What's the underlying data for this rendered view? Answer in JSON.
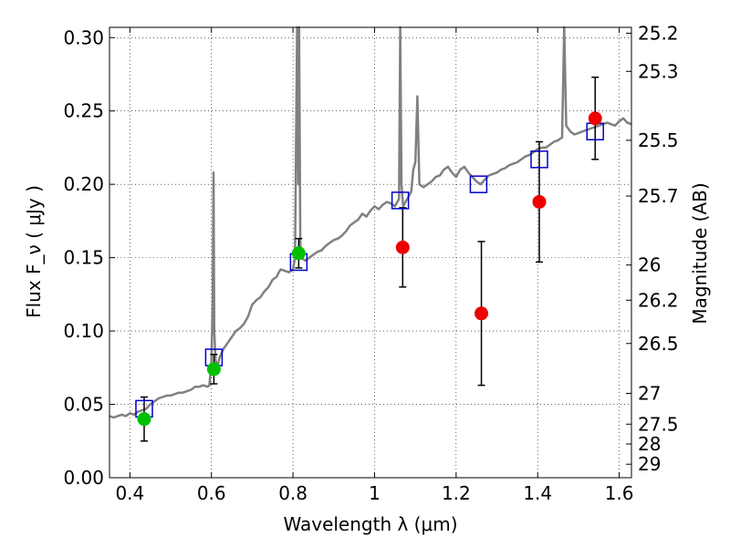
{
  "chart_data": {
    "type": "scatter",
    "xlabel": "Wavelength λ (μm)",
    "ylabel": "Flux F_ν ( μJy )",
    "ylabel_right": "Magnitude (AB)",
    "xlim": [
      0.35,
      1.63
    ],
    "ylim": [
      0.0,
      0.307
    ],
    "grid": true,
    "x_ticks": [
      {
        "value": 0.4,
        "label": "0.4"
      },
      {
        "value": 0.6,
        "label": "0.6"
      },
      {
        "value": 0.8,
        "label": "0.8"
      },
      {
        "value": 1.0,
        "label": "1"
      },
      {
        "value": 1.2,
        "label": "1.2"
      },
      {
        "value": 1.4,
        "label": "1.4"
      },
      {
        "value": 1.6,
        "label": "1.6"
      }
    ],
    "y_ticks": [
      {
        "value": 0.0,
        "label": "0.00"
      },
      {
        "value": 0.05,
        "label": "0.05"
      },
      {
        "value": 0.1,
        "label": "0.10"
      },
      {
        "value": 0.15,
        "label": "0.15"
      },
      {
        "value": 0.2,
        "label": "0.20"
      },
      {
        "value": 0.25,
        "label": "0.25"
      },
      {
        "value": 0.3,
        "label": "0.30"
      }
    ],
    "right_ticks": [
      {
        "label": "25.2",
        "flux": 0.303
      },
      {
        "label": "25.3",
        "flux": 0.277
      },
      {
        "label": "25.5",
        "flux": 0.23
      },
      {
        "label": "25.7",
        "flux": 0.192
      },
      {
        "label": "26",
        "flux": 0.145
      },
      {
        "label": "26.2",
        "flux": 0.121
      },
      {
        "label": "26.5",
        "flux": 0.0915
      },
      {
        "label": "27",
        "flux": 0.0575
      },
      {
        "label": "27.5",
        "flux": 0.0365
      },
      {
        "label": "28",
        "flux": 0.023
      },
      {
        "label": "29",
        "flux": 0.0092
      }
    ],
    "series": [
      {
        "kind": "spectrum",
        "color": "#808080",
        "points": [
          [
            0.35,
            0.042
          ],
          [
            0.36,
            0.041
          ],
          [
            0.37,
            0.042
          ],
          [
            0.38,
            0.043
          ],
          [
            0.39,
            0.042
          ],
          [
            0.4,
            0.044
          ],
          [
            0.41,
            0.043
          ],
          [
            0.42,
            0.045
          ],
          [
            0.43,
            0.046
          ],
          [
            0.44,
            0.047
          ],
          [
            0.45,
            0.05
          ],
          [
            0.46,
            0.052
          ],
          [
            0.47,
            0.054
          ],
          [
            0.48,
            0.055
          ],
          [
            0.49,
            0.056
          ],
          [
            0.5,
            0.056
          ],
          [
            0.51,
            0.057
          ],
          [
            0.52,
            0.058
          ],
          [
            0.53,
            0.058
          ],
          [
            0.54,
            0.059
          ],
          [
            0.55,
            0.06
          ],
          [
            0.56,
            0.062
          ],
          [
            0.57,
            0.062
          ],
          [
            0.58,
            0.063
          ],
          [
            0.59,
            0.062
          ],
          [
            0.595,
            0.063
          ],
          [
            0.6,
            0.08
          ],
          [
            0.603,
            0.12
          ],
          [
            0.605,
            0.208
          ],
          [
            0.607,
            0.1
          ],
          [
            0.61,
            0.08
          ],
          [
            0.615,
            0.076
          ],
          [
            0.62,
            0.082
          ],
          [
            0.63,
            0.088
          ],
          [
            0.64,
            0.092
          ],
          [
            0.65,
            0.096
          ],
          [
            0.66,
            0.1
          ],
          [
            0.67,
            0.102
          ],
          [
            0.68,
            0.105
          ],
          [
            0.69,
            0.11
          ],
          [
            0.7,
            0.118
          ],
          [
            0.71,
            0.121
          ],
          [
            0.72,
            0.123
          ],
          [
            0.73,
            0.127
          ],
          [
            0.74,
            0.13
          ],
          [
            0.75,
            0.135
          ],
          [
            0.76,
            0.137
          ],
          [
            0.765,
            0.14
          ],
          [
            0.77,
            0.142
          ],
          [
            0.78,
            0.141
          ],
          [
            0.79,
            0.14
          ],
          [
            0.8,
            0.142
          ],
          [
            0.805,
            0.15
          ],
          [
            0.81,
            0.307
          ],
          [
            0.813,
            0.2
          ],
          [
            0.815,
            0.307
          ],
          [
            0.818,
            0.16
          ],
          [
            0.82,
            0.15
          ],
          [
            0.83,
            0.148
          ],
          [
            0.84,
            0.15
          ],
          [
            0.85,
            0.152
          ],
          [
            0.86,
            0.154
          ],
          [
            0.87,
            0.155
          ],
          [
            0.88,
            0.158
          ],
          [
            0.89,
            0.16
          ],
          [
            0.9,
            0.162
          ],
          [
            0.91,
            0.163
          ],
          [
            0.92,
            0.165
          ],
          [
            0.93,
            0.168
          ],
          [
            0.94,
            0.172
          ],
          [
            0.95,
            0.174
          ],
          [
            0.96,
            0.176
          ],
          [
            0.97,
            0.18
          ],
          [
            0.98,
            0.178
          ],
          [
            0.99,
            0.182
          ],
          [
            1.0,
            0.185
          ],
          [
            1.01,
            0.183
          ],
          [
            1.02,
            0.186
          ],
          [
            1.03,
            0.188
          ],
          [
            1.04,
            0.187
          ],
          [
            1.05,
            0.185
          ],
          [
            1.06,
            0.19
          ],
          [
            1.063,
            0.307
          ],
          [
            1.066,
            0.2
          ],
          [
            1.07,
            0.185
          ],
          [
            1.08,
            0.19
          ],
          [
            1.09,
            0.195
          ],
          [
            1.095,
            0.21
          ],
          [
            1.1,
            0.215
          ],
          [
            1.105,
            0.26
          ],
          [
            1.11,
            0.2
          ],
          [
            1.12,
            0.198
          ],
          [
            1.13,
            0.2
          ],
          [
            1.14,
            0.202
          ],
          [
            1.15,
            0.205
          ],
          [
            1.16,
            0.206
          ],
          [
            1.17,
            0.21
          ],
          [
            1.18,
            0.212
          ],
          [
            1.19,
            0.208
          ],
          [
            1.2,
            0.205
          ],
          [
            1.21,
            0.21
          ],
          [
            1.22,
            0.212
          ],
          [
            1.23,
            0.208
          ],
          [
            1.24,
            0.205
          ],
          [
            1.25,
            0.202
          ],
          [
            1.26,
            0.2
          ],
          [
            1.27,
            0.203
          ],
          [
            1.28,
            0.206
          ],
          [
            1.29,
            0.207
          ],
          [
            1.3,
            0.208
          ],
          [
            1.31,
            0.21
          ],
          [
            1.32,
            0.211
          ],
          [
            1.33,
            0.213
          ],
          [
            1.34,
            0.214
          ],
          [
            1.35,
            0.215
          ],
          [
            1.36,
            0.217
          ],
          [
            1.37,
            0.219
          ],
          [
            1.38,
            0.22
          ],
          [
            1.39,
            0.222
          ],
          [
            1.4,
            0.224
          ],
          [
            1.41,
            0.225
          ],
          [
            1.42,
            0.225
          ],
          [
            1.43,
            0.227
          ],
          [
            1.44,
            0.229
          ],
          [
            1.45,
            0.23
          ],
          [
            1.46,
            0.232
          ],
          [
            1.465,
            0.307
          ],
          [
            1.47,
            0.24
          ],
          [
            1.48,
            0.236
          ],
          [
            1.49,
            0.234
          ],
          [
            1.5,
            0.235
          ],
          [
            1.51,
            0.236
          ],
          [
            1.52,
            0.237
          ],
          [
            1.53,
            0.238
          ],
          [
            1.54,
            0.239
          ],
          [
            1.55,
            0.24
          ],
          [
            1.56,
            0.241
          ],
          [
            1.57,
            0.242
          ],
          [
            1.58,
            0.241
          ],
          [
            1.59,
            0.24
          ],
          [
            1.6,
            0.243
          ],
          [
            1.61,
            0.245
          ],
          [
            1.62,
            0.242
          ],
          [
            1.63,
            0.241
          ]
        ]
      },
      {
        "kind": "model-photometry",
        "marker": "square",
        "color": "#0000cc",
        "points": [
          [
            0.435,
            0.047
          ],
          [
            0.606,
            0.082
          ],
          [
            0.814,
            0.147
          ],
          [
            1.063,
            0.189
          ],
          [
            1.255,
            0.2
          ],
          [
            1.404,
            0.217
          ],
          [
            1.541,
            0.236
          ]
        ]
      },
      {
        "kind": "observed-green",
        "marker": "circle",
        "color": "#00c000",
        "points": [
          [
            0.435,
            0.04,
            0.015
          ],
          [
            0.606,
            0.074,
            0.01
          ],
          [
            0.814,
            0.153,
            0.01
          ]
        ]
      },
      {
        "kind": "observed-red",
        "marker": "circle",
        "color": "#ee0000",
        "points": [
          [
            1.069,
            0.157,
            0.027
          ],
          [
            1.262,
            0.112,
            0.049
          ],
          [
            1.404,
            0.188,
            0.041
          ],
          [
            1.541,
            0.245,
            0.028
          ]
        ]
      }
    ]
  }
}
